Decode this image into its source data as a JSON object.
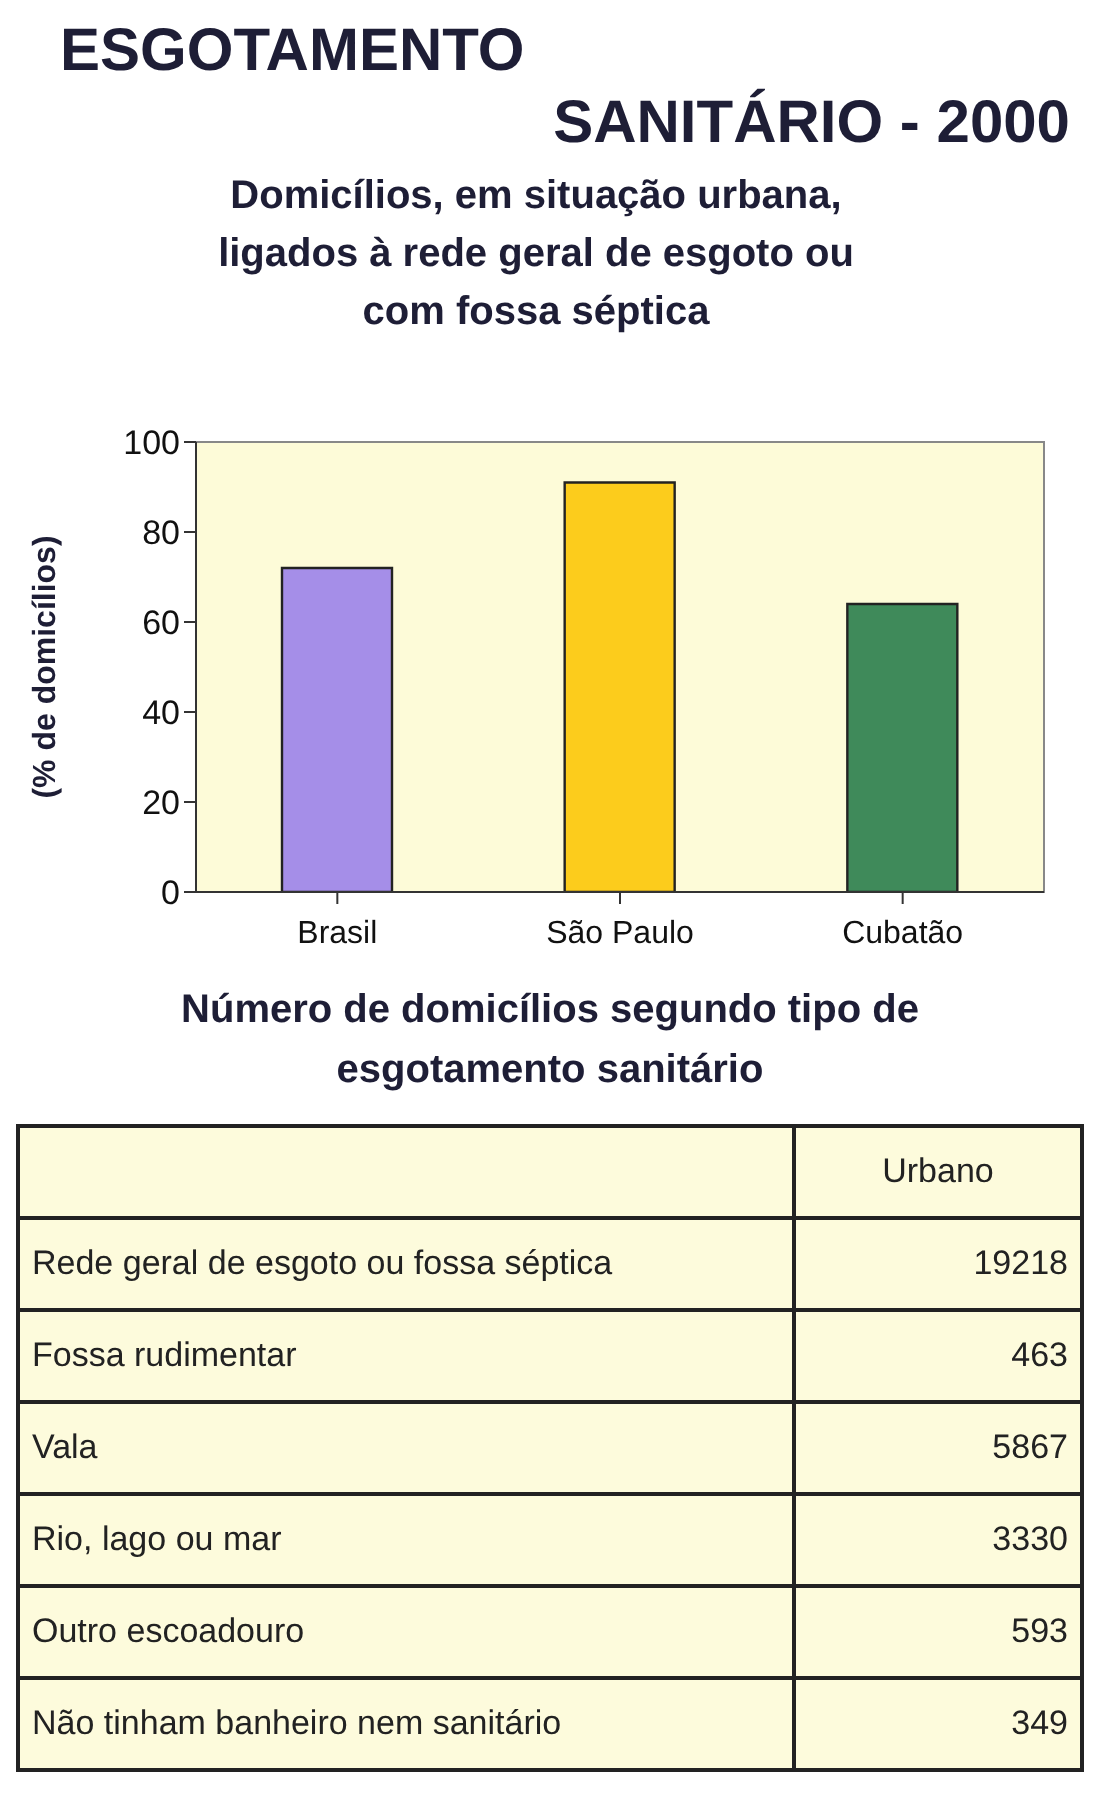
{
  "chart_data": [
    {
      "type": "bar",
      "title": "ESGOTAMENTO SANITÁRIO - 2000",
      "subtitle": "Domicílios, em situação urbana, ligados à rede geral de esgoto ou com fossa séptica",
      "ylabel": "(% de domicílios)",
      "categories": [
        "Brasil",
        "São Paulo",
        "Cubatão"
      ],
      "values": [
        72,
        91,
        64
      ],
      "colors": [
        "#a58ee8",
        "#fccc1c",
        "#3f8a5a"
      ],
      "ylim": [
        0,
        100
      ],
      "yticks": [
        0,
        20,
        40,
        60,
        80,
        100
      ]
    },
    {
      "type": "other",
      "title": "Número de domicílios segundo tipo de esgotamento sanitário",
      "categories": [
        "Rede geral de esgoto ou fossa séptica",
        "Fossa rudimentar",
        "Vala",
        "Rio, lago ou mar",
        "Outro escoadouro",
        "Não tinham banheiro nem sanitário"
      ],
      "series": [
        {
          "name": "Urbano",
          "values": [
            19218,
            463,
            5867,
            3330,
            593,
            349
          ]
        }
      ],
      "data_labels": true
    }
  ]
}
